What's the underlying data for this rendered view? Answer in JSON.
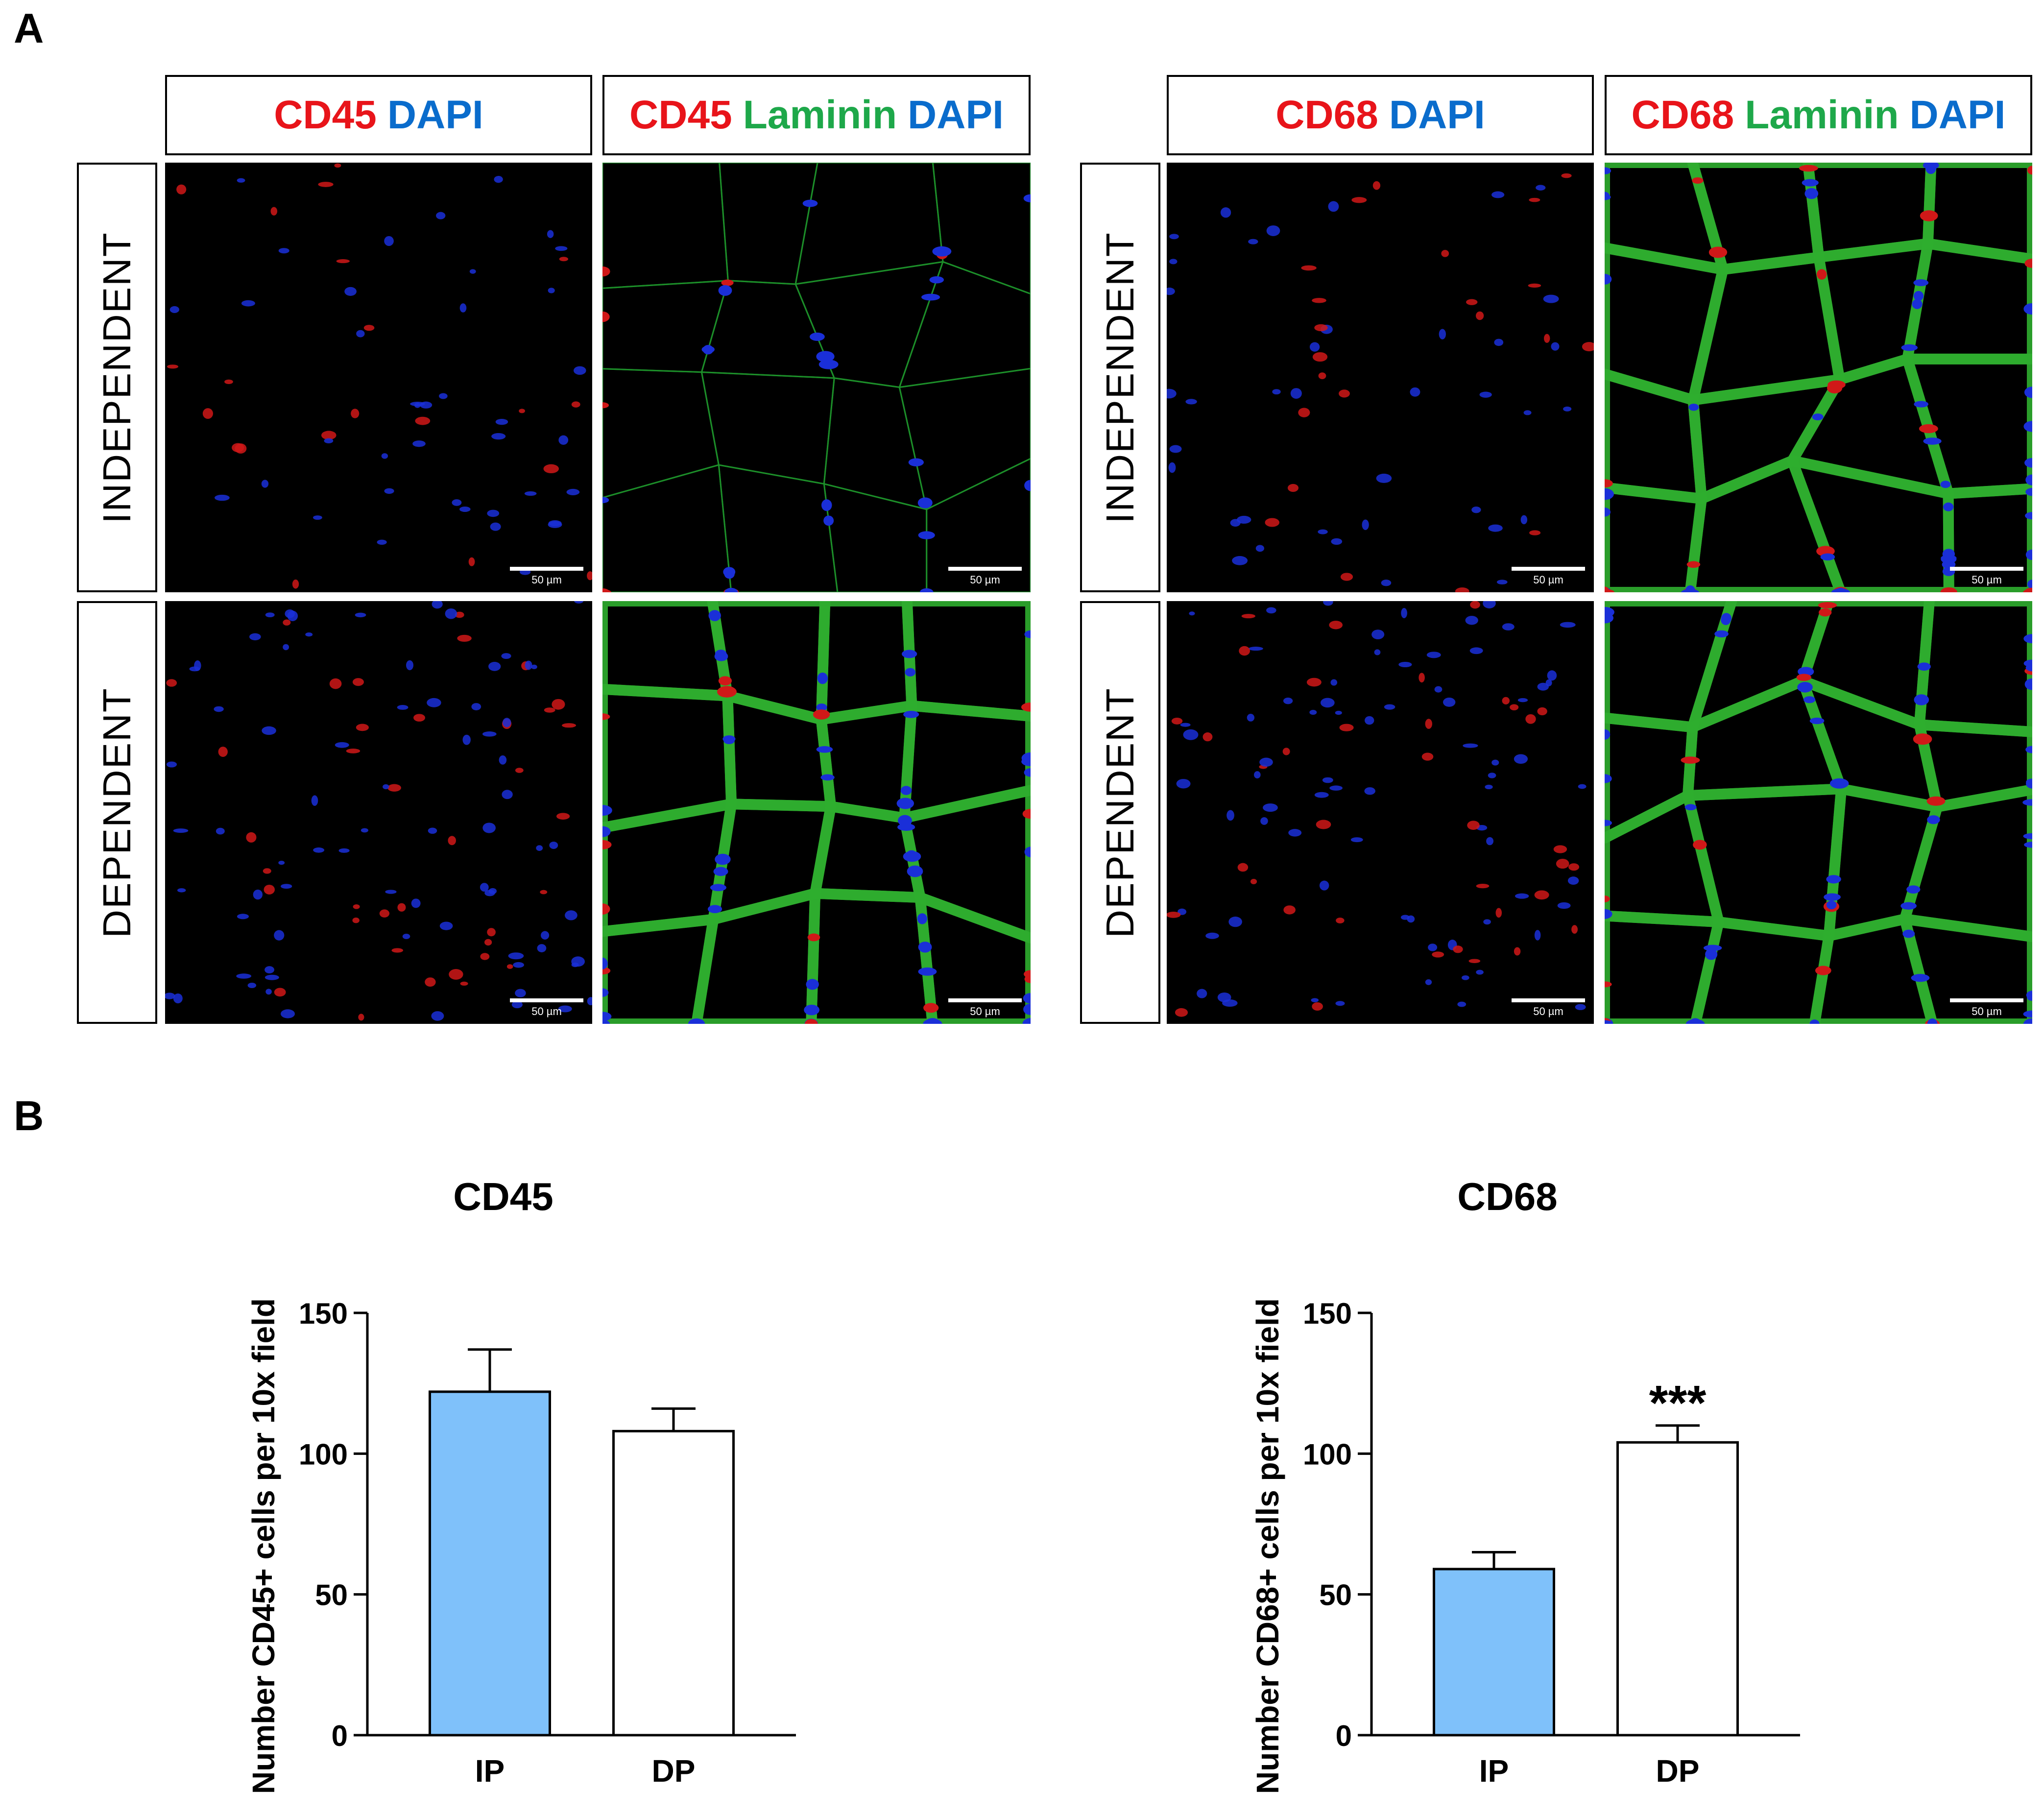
{
  "panel_a": {
    "letter": "A",
    "row_labels": [
      "INDEPENDENT",
      "DEPENDENT"
    ],
    "scale_label": "50 µm",
    "groups": [
      {
        "headers": [
          [
            {
              "text": "CD45",
              "color": "red"
            },
            {
              "text": "DAPI",
              "color": "blue"
            }
          ],
          [
            {
              "text": "CD45",
              "color": "red"
            },
            {
              "text": "Laminin",
              "color": "green"
            },
            {
              "text": "DAPI",
              "color": "blue"
            }
          ]
        ]
      },
      {
        "headers": [
          [
            {
              "text": "CD68",
              "color": "red"
            },
            {
              "text": "DAPI",
              "color": "blue"
            }
          ],
          [
            {
              "text": "CD68",
              "color": "red"
            },
            {
              "text": "Laminin",
              "color": "green"
            },
            {
              "text": "DAPI",
              "color": "blue"
            }
          ]
        ]
      }
    ]
  },
  "panel_b": {
    "letter": "B"
  },
  "chart_data": [
    {
      "type": "bar",
      "title": "CD45",
      "ylabel": "Number CD45+ cells per 10x field",
      "categories": [
        "IP",
        "DP"
      ],
      "values": [
        122,
        108
      ],
      "errors": [
        15,
        8
      ],
      "ylim": [
        0,
        150
      ],
      "yticks": [
        0,
        50,
        100,
        150
      ],
      "colors": [
        "#7fc1fa",
        "#ffffff"
      ],
      "annotations": [
        "",
        ""
      ]
    },
    {
      "type": "bar",
      "title": "CD68",
      "ylabel": "Number CD68+ cells per 10x field",
      "categories": [
        "IP",
        "DP"
      ],
      "values": [
        59,
        104
      ],
      "errors": [
        6,
        6
      ],
      "ylim": [
        0,
        150
      ],
      "yticks": [
        0,
        50,
        100,
        150
      ],
      "colors": [
        "#7fc1fa",
        "#ffffff"
      ],
      "annotations": [
        "",
        "***"
      ]
    }
  ]
}
